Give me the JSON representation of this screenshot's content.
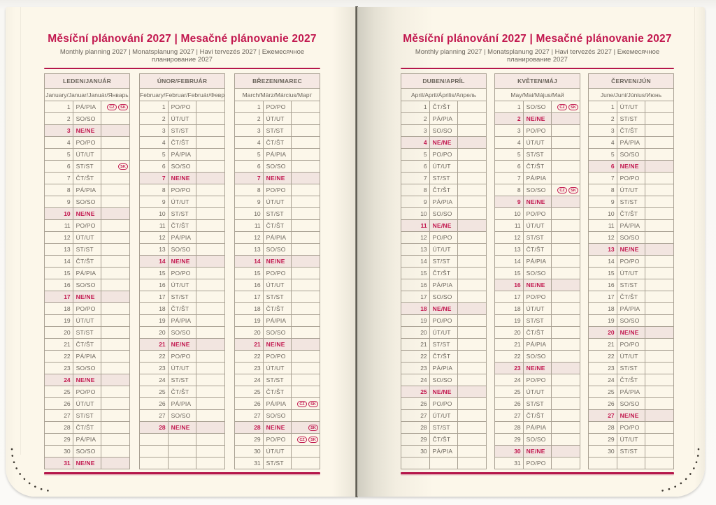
{
  "colors": {
    "accent": "#c2184f",
    "rule": "#b5174b",
    "text": "#6b655c",
    "border": "#a9a193",
    "sunday_bg": "#f2e5e0",
    "header_bg": "#f5e8e3",
    "page_bg": "#fcf7ea"
  },
  "title": "Měsíční plánování 2027 | Mesačné plánovanie 2027",
  "subtitle": "Monthly planning 2027 | Monatsplanung 2027 | Havi tervezés 2027 | Ежемесячное планирование 2027",
  "badge_labels": {
    "cz": "CZ",
    "sk": "SK"
  },
  "pages": [
    {
      "side": "left",
      "months": [
        {
          "id": "leden-januar",
          "name": "LEDEN/JANUÁR",
          "subtitle": "January/Januar/Január/Январь",
          "rows": [
            [
              1,
              "PÁ/PIA",
              [
                "CZ",
                "SK"
              ]
            ],
            [
              2,
              "SO/SO"
            ],
            [
              3,
              "NE/NE"
            ],
            [
              4,
              "PO/PO"
            ],
            [
              5,
              "ÚT/UT"
            ],
            [
              6,
              "ST/ST",
              [
                "SK"
              ]
            ],
            [
              7,
              "ČT/ŠT"
            ],
            [
              8,
              "PÁ/PIA"
            ],
            [
              9,
              "SO/SO"
            ],
            [
              10,
              "NE/NE"
            ],
            [
              11,
              "PO/PO"
            ],
            [
              12,
              "ÚT/UT"
            ],
            [
              13,
              "ST/ST"
            ],
            [
              14,
              "ČT/ŠT"
            ],
            [
              15,
              "PÁ/PIA"
            ],
            [
              16,
              "SO/SO"
            ],
            [
              17,
              "NE/NE"
            ],
            [
              18,
              "PO/PO"
            ],
            [
              19,
              "ÚT/UT"
            ],
            [
              20,
              "ST/ST"
            ],
            [
              21,
              "ČT/ŠT"
            ],
            [
              22,
              "PÁ/PIA"
            ],
            [
              23,
              "SO/SO"
            ],
            [
              24,
              "NE/NE"
            ],
            [
              25,
              "PO/PO"
            ],
            [
              26,
              "ÚT/UT"
            ],
            [
              27,
              "ST/ST"
            ],
            [
              28,
              "ČT/ŠT"
            ],
            [
              29,
              "PÁ/PIA"
            ],
            [
              30,
              "SO/SO"
            ],
            [
              31,
              "NE/NE"
            ]
          ]
        },
        {
          "id": "unor-februar",
          "name": "ÚNOR/FEBRUÁR",
          "subtitle": "February/Februar/Február/Февраль",
          "rows": [
            [
              1,
              "PO/PO"
            ],
            [
              2,
              "ÚT/UT"
            ],
            [
              3,
              "ST/ST"
            ],
            [
              4,
              "ČT/ŠT"
            ],
            [
              5,
              "PÁ/PIA"
            ],
            [
              6,
              "SO/SO"
            ],
            [
              7,
              "NE/NE"
            ],
            [
              8,
              "PO/PO"
            ],
            [
              9,
              "ÚT/UT"
            ],
            [
              10,
              "ST/ST"
            ],
            [
              11,
              "ČT/ŠT"
            ],
            [
              12,
              "PÁ/PIA"
            ],
            [
              13,
              "SO/SO"
            ],
            [
              14,
              "NE/NE"
            ],
            [
              15,
              "PO/PO"
            ],
            [
              16,
              "ÚT/UT"
            ],
            [
              17,
              "ST/ST"
            ],
            [
              18,
              "ČT/ŠT"
            ],
            [
              19,
              "PÁ/PIA"
            ],
            [
              20,
              "SO/SO"
            ],
            [
              21,
              "NE/NE"
            ],
            [
              22,
              "PO/PO"
            ],
            [
              23,
              "ÚT/UT"
            ],
            [
              24,
              "ST/ST"
            ],
            [
              25,
              "ČT/ŠT"
            ],
            [
              26,
              "PÁ/PIA"
            ],
            [
              27,
              "SO/SO"
            ],
            [
              28,
              "NE/NE"
            ],
            [
              null,
              ""
            ],
            [
              null,
              ""
            ],
            [
              null,
              ""
            ]
          ]
        },
        {
          "id": "brezen-marec",
          "name": "BŘEZEN/MAREC",
          "subtitle": "March/März/Március/Март",
          "rows": [
            [
              1,
              "PO/PO"
            ],
            [
              2,
              "ÚT/UT"
            ],
            [
              3,
              "ST/ST"
            ],
            [
              4,
              "ČT/ŠT"
            ],
            [
              5,
              "PÁ/PIA"
            ],
            [
              6,
              "SO/SO"
            ],
            [
              7,
              "NE/NE"
            ],
            [
              8,
              "PO/PO"
            ],
            [
              9,
              "ÚT/UT"
            ],
            [
              10,
              "ST/ST"
            ],
            [
              11,
              "ČT/ŠT"
            ],
            [
              12,
              "PÁ/PIA"
            ],
            [
              13,
              "SO/SO"
            ],
            [
              14,
              "NE/NE"
            ],
            [
              15,
              "PO/PO"
            ],
            [
              16,
              "ÚT/UT"
            ],
            [
              17,
              "ST/ST"
            ],
            [
              18,
              "ČT/ŠT"
            ],
            [
              19,
              "PÁ/PIA"
            ],
            [
              20,
              "SO/SO"
            ],
            [
              21,
              "NE/NE"
            ],
            [
              22,
              "PO/PO"
            ],
            [
              23,
              "ÚT/UT"
            ],
            [
              24,
              "ST/ST"
            ],
            [
              25,
              "ČT/ŠT"
            ],
            [
              26,
              "PÁ/PIA",
              [
                "CZ",
                "SK"
              ]
            ],
            [
              27,
              "SO/SO"
            ],
            [
              28,
              "NE/NE",
              [
                "SK"
              ]
            ],
            [
              29,
              "PO/PO",
              [
                "CZ",
                "SK"
              ]
            ],
            [
              30,
              "ÚT/UT"
            ],
            [
              31,
              "ST/ST"
            ]
          ]
        }
      ]
    },
    {
      "side": "right",
      "months": [
        {
          "id": "duben-april",
          "name": "DUBEN/APRÍL",
          "subtitle": "April/April/Április/Апрель",
          "rows": [
            [
              1,
              "ČT/ŠT"
            ],
            [
              2,
              "PÁ/PIA"
            ],
            [
              3,
              "SO/SO"
            ],
            [
              4,
              "NE/NE"
            ],
            [
              5,
              "PO/PO"
            ],
            [
              6,
              "ÚT/UT"
            ],
            [
              7,
              "ST/ST"
            ],
            [
              8,
              "ČT/ŠT"
            ],
            [
              9,
              "PÁ/PIA"
            ],
            [
              10,
              "SO/SO"
            ],
            [
              11,
              "NE/NE"
            ],
            [
              12,
              "PO/PO"
            ],
            [
              13,
              "ÚT/UT"
            ],
            [
              14,
              "ST/ST"
            ],
            [
              15,
              "ČT/ŠT"
            ],
            [
              16,
              "PÁ/PIA"
            ],
            [
              17,
              "SO/SO"
            ],
            [
              18,
              "NE/NE"
            ],
            [
              19,
              "PO/PO"
            ],
            [
              20,
              "ÚT/UT"
            ],
            [
              21,
              "ST/ST"
            ],
            [
              22,
              "ČT/ŠT"
            ],
            [
              23,
              "PÁ/PIA"
            ],
            [
              24,
              "SO/SO"
            ],
            [
              25,
              "NE/NE"
            ],
            [
              26,
              "PO/PO"
            ],
            [
              27,
              "ÚT/UT"
            ],
            [
              28,
              "ST/ST"
            ],
            [
              29,
              "ČT/ŠT"
            ],
            [
              30,
              "PÁ/PIA"
            ],
            [
              null,
              ""
            ]
          ]
        },
        {
          "id": "kveten-maj",
          "name": "KVĚTEN/MÁJ",
          "subtitle": "May/Mai/Május/Май",
          "rows": [
            [
              1,
              "SO/SO",
              [
                "CZ",
                "SK"
              ]
            ],
            [
              2,
              "NE/NE"
            ],
            [
              3,
              "PO/PO"
            ],
            [
              4,
              "ÚT/UT"
            ],
            [
              5,
              "ST/ST"
            ],
            [
              6,
              "ČT/ŠT"
            ],
            [
              7,
              "PÁ/PIA"
            ],
            [
              8,
              "SO/SO",
              [
                "CZ",
                "SK"
              ]
            ],
            [
              9,
              "NE/NE"
            ],
            [
              10,
              "PO/PO"
            ],
            [
              11,
              "ÚT/UT"
            ],
            [
              12,
              "ST/ST"
            ],
            [
              13,
              "ČT/ŠT"
            ],
            [
              14,
              "PÁ/PIA"
            ],
            [
              15,
              "SO/SO"
            ],
            [
              16,
              "NE/NE"
            ],
            [
              17,
              "PO/PO"
            ],
            [
              18,
              "ÚT/UT"
            ],
            [
              19,
              "ST/ST"
            ],
            [
              20,
              "ČT/ŠT"
            ],
            [
              21,
              "PÁ/PIA"
            ],
            [
              22,
              "SO/SO"
            ],
            [
              23,
              "NE/NE"
            ],
            [
              24,
              "PO/PO"
            ],
            [
              25,
              "ÚT/UT"
            ],
            [
              26,
              "ST/ST"
            ],
            [
              27,
              "ČT/ŠT"
            ],
            [
              28,
              "PÁ/PIA"
            ],
            [
              29,
              "SO/SO"
            ],
            [
              30,
              "NE/NE"
            ],
            [
              31,
              "PO/PO"
            ]
          ]
        },
        {
          "id": "cerven-jun",
          "name": "ČERVEN/JÚN",
          "subtitle": "June/Juni/Június/Июнь",
          "rows": [
            [
              1,
              "ÚT/UT"
            ],
            [
              2,
              "ST/ST"
            ],
            [
              3,
              "ČT/ŠT"
            ],
            [
              4,
              "PÁ/PIA"
            ],
            [
              5,
              "SO/SO"
            ],
            [
              6,
              "NE/NE"
            ],
            [
              7,
              "PO/PO"
            ],
            [
              8,
              "ÚT/UT"
            ],
            [
              9,
              "ST/ST"
            ],
            [
              10,
              "ČT/ŠT"
            ],
            [
              11,
              "PÁ/PIA"
            ],
            [
              12,
              "SO/SO"
            ],
            [
              13,
              "NE/NE"
            ],
            [
              14,
              "PO/PO"
            ],
            [
              15,
              "ÚT/UT"
            ],
            [
              16,
              "ST/ST"
            ],
            [
              17,
              "ČT/ŠT"
            ],
            [
              18,
              "PÁ/PIA"
            ],
            [
              19,
              "SO/SO"
            ],
            [
              20,
              "NE/NE"
            ],
            [
              21,
              "PO/PO"
            ],
            [
              22,
              "ÚT/UT"
            ],
            [
              23,
              "ST/ST"
            ],
            [
              24,
              "ČT/ŠT"
            ],
            [
              25,
              "PÁ/PIA"
            ],
            [
              26,
              "SO/SO"
            ],
            [
              27,
              "NE/NE"
            ],
            [
              28,
              "PO/PO"
            ],
            [
              29,
              "ÚT/UT"
            ],
            [
              30,
              "ST/ST"
            ],
            [
              null,
              ""
            ]
          ]
        }
      ]
    }
  ]
}
